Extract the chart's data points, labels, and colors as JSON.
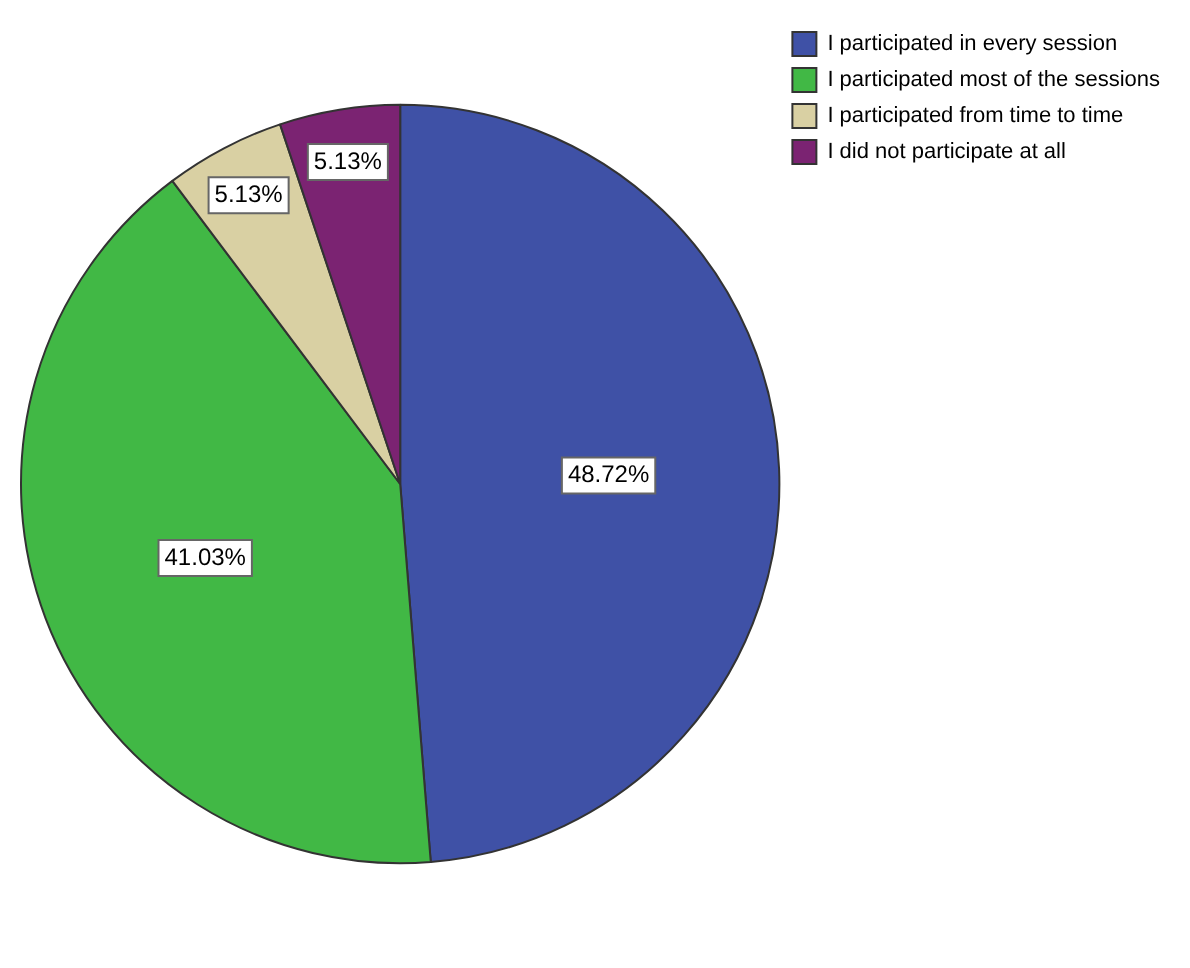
{
  "chart_data": {
    "type": "pie",
    "categories": [
      "I participated in every session",
      "I participated most of the sessions",
      "I participated from time to time",
      "I did not participate at all"
    ],
    "values": [
      48.72,
      41.03,
      5.13,
      5.13
    ],
    "value_labels": [
      "48.72%",
      "41.03%",
      "5.13%",
      "5.13%"
    ],
    "colors": [
      "#3f51a6",
      "#41b845",
      "#d9d0a3",
      "#7b2372"
    ],
    "legend": "top right"
  }
}
